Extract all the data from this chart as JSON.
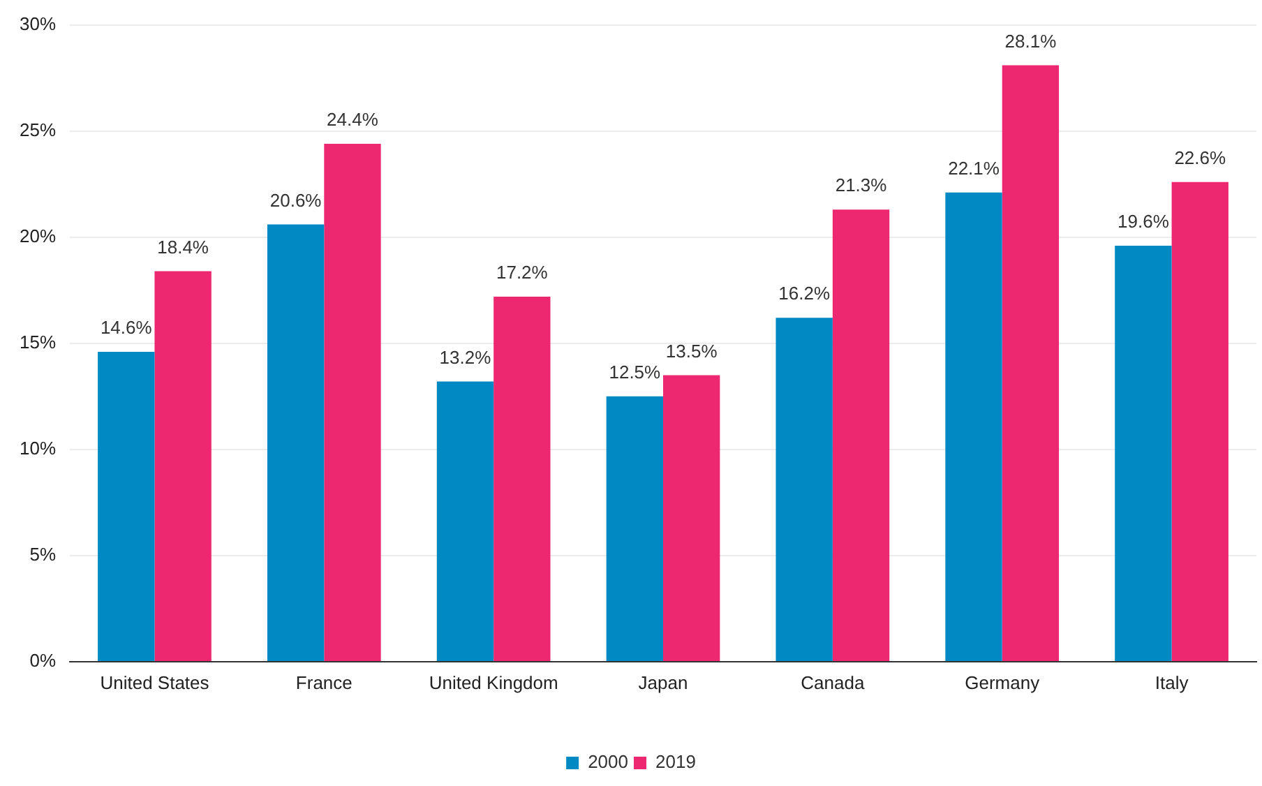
{
  "chart_data": {
    "type": "bar",
    "categories": [
      "United States",
      "France",
      "United Kingdom",
      "Japan",
      "Canada",
      "Germany",
      "Italy"
    ],
    "series": [
      {
        "name": "2000",
        "color": "#0089c2",
        "values": [
          14.6,
          20.6,
          13.2,
          12.5,
          16.2,
          22.1,
          19.6
        ],
        "value_labels": [
          "14.6%",
          "20.6%",
          "13.2%",
          "12.5%",
          "16.2%",
          "22.1%",
          "19.6%"
        ]
      },
      {
        "name": "2019",
        "color": "#ee2870",
        "values": [
          18.4,
          24.4,
          17.2,
          13.5,
          21.3,
          28.1,
          22.6
        ],
        "value_labels": [
          "18.4%",
          "24.4%",
          "17.2%",
          "13.5%",
          "21.3%",
          "28.1%",
          "22.6%"
        ]
      }
    ],
    "ylim": [
      0,
      30
    ],
    "yticks": [
      {
        "value": 0,
        "label": "0%"
      },
      {
        "value": 5,
        "label": "5%"
      },
      {
        "value": 10,
        "label": "10%"
      },
      {
        "value": 15,
        "label": "15%"
      },
      {
        "value": 20,
        "label": "20%"
      },
      {
        "value": 25,
        "label": "25%"
      },
      {
        "value": 30,
        "label": "30%"
      }
    ],
    "grid": "y",
    "legend": "bottom"
  }
}
